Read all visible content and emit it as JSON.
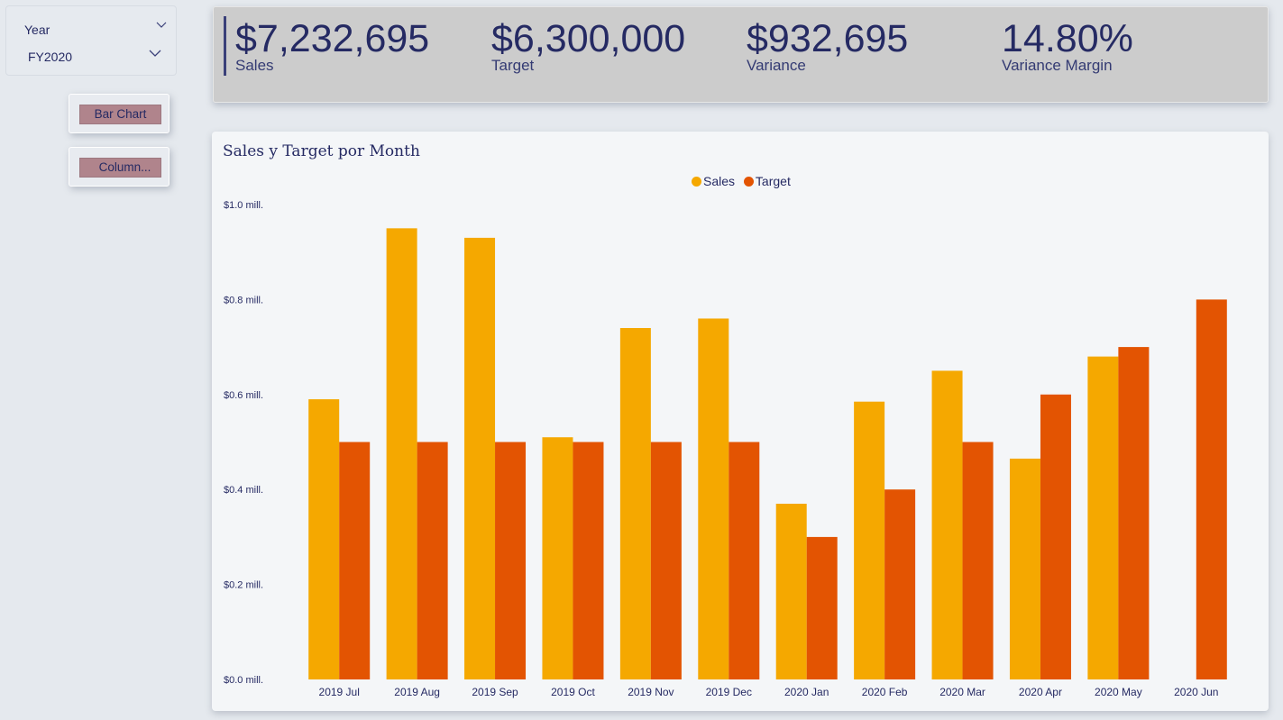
{
  "slicer": {
    "title": "Year",
    "value": "FY2020"
  },
  "buttons": {
    "bar_chart": "Bar Chart",
    "column": "Column..."
  },
  "kpis": [
    {
      "value": "$7,232,695",
      "label": "Sales"
    },
    {
      "value": "$6,300,000",
      "label": "Target"
    },
    {
      "value": "$932,695",
      "label": "Variance"
    },
    {
      "value": "14.80%",
      "label": "Variance Margin"
    }
  ],
  "colors": {
    "sales": "#f5a800",
    "target": "#e35402"
  },
  "chart_data": {
    "type": "bar",
    "title": "Sales y Target por Month",
    "categories": [
      "2019 Jul",
      "2019 Aug",
      "2019 Sep",
      "2019 Oct",
      "2019 Nov",
      "2019 Dec",
      "2020 Jan",
      "2020 Feb",
      "2020 Mar",
      "2020 Apr",
      "2020 May",
      "2020 Jun"
    ],
    "series": [
      {
        "name": "Sales",
        "values": [
          0.59,
          0.95,
          0.93,
          0.51,
          0.74,
          0.76,
          0.37,
          0.585,
          0.65,
          0.465,
          0.68,
          null
        ]
      },
      {
        "name": "Target",
        "values": [
          0.5,
          0.5,
          0.5,
          0.5,
          0.5,
          0.5,
          0.3,
          0.4,
          0.5,
          0.6,
          0.7,
          0.8
        ]
      }
    ],
    "yticks": [
      0,
      0.2,
      0.4,
      0.6,
      0.8,
      1.0
    ],
    "ytick_labels": [
      "$0.0 mill.",
      "$0.2 mill.",
      "$0.4 mill.",
      "$0.6 mill.",
      "$0.8 mill.",
      "$1.0 mill."
    ],
    "ylim": [
      0,
      1.0
    ],
    "legend_position": "top-center",
    "grid": false
  }
}
